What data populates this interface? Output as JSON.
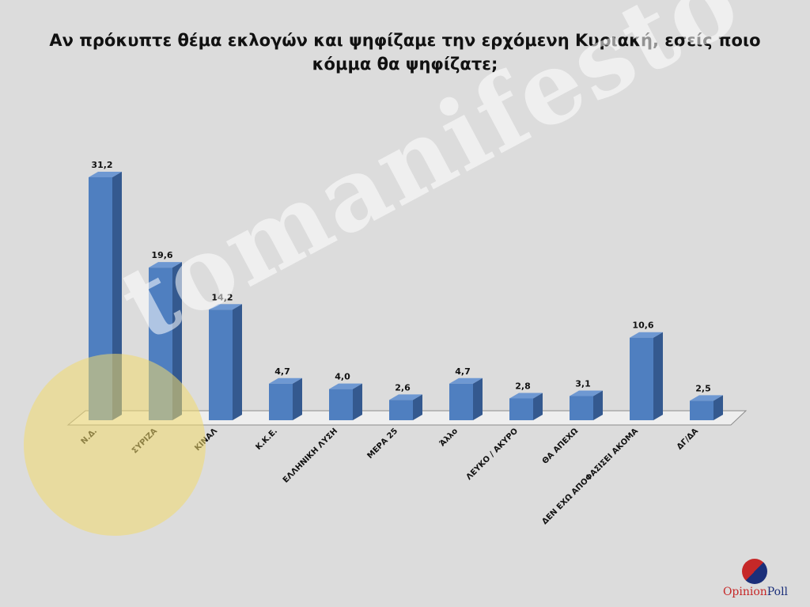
{
  "chart_data": {
    "type": "bar",
    "title_line1": "Αν πρόκυπτε θέμα εκλογών και ψηφίζαμε την ερχόμενη Κυριακή, εσείς ποιο",
    "title_line2": "κόμμα θα ψηφίζατε;",
    "categories": [
      "Ν.Δ.",
      "ΣΥΡΙΖΑ",
      "ΚΙΝΑΛ",
      "Κ.Κ.Ε.",
      "ΕΛΛΗΝΙΚΗ ΛΥΣΗ",
      "ΜΕΡΑ 25",
      "Άλλο",
      "ΛΕΥΚΟ / ΑΚΥΡΟ",
      "ΘΑ ΑΠΕΧΩ",
      "ΔΕΝ ΕΧΩ ΑΠΟΦΑΣΙΣΕΙ ΑΚΟΜΑ",
      "ΔΓ/ΔΑ"
    ],
    "values": [
      31.2,
      19.6,
      14.2,
      4.7,
      4.0,
      2.6,
      4.7,
      2.8,
      3.1,
      10.6,
      2.5
    ],
    "value_labels": [
      "31,2",
      "19,6",
      "14,2",
      "4,7",
      "4,0",
      "2,6",
      "4,7",
      "2,8",
      "3,1",
      "10,6",
      "2,5"
    ],
    "ylim": [
      0,
      31.2
    ],
    "grid": false,
    "legend": "none",
    "style": "3d-columns"
  },
  "colors": {
    "bar_front": "#4f7fc0",
    "bar_side": "#34598f",
    "bar_top": "#6e98d2",
    "background": "#dcdcdc",
    "floor": "#eeeeee"
  },
  "watermark": {
    "text": "tomanifesto"
  },
  "logo": {
    "part1": "Opinion",
    "part2": "Poll",
    "icon": "opinionpoll-logo-icon"
  }
}
